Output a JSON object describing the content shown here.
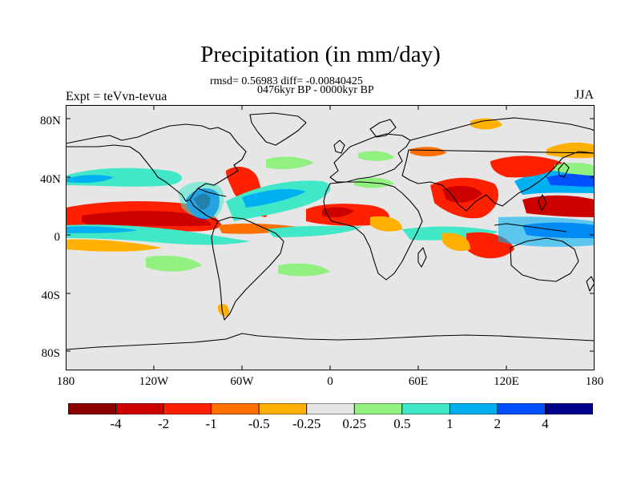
{
  "title": "Precipitation (in mm/day)",
  "stats_line1": "rmsd= 0.56983 diff= -0.00840425",
  "stats_line2": "0476kyr BP - 0000kyr BP",
  "experiment_label": "Expt = teVvn-tevua",
  "season_label": "JJA",
  "lat_ticks": [
    "80N",
    "40N",
    "0",
    "40S",
    "80S"
  ],
  "lon_ticks": [
    "180",
    "120W",
    "60W",
    "0",
    "60E",
    "120E",
    "180"
  ],
  "colorbar": {
    "colors": [
      "#8b0000",
      "#cd0000",
      "#ff2000",
      "#ff7000",
      "#ffb000",
      "#e6e6e6",
      "#90f080",
      "#40e8c8",
      "#00b0f0",
      "#0050ff",
      "#00008b"
    ],
    "labels": [
      "-4",
      "-2",
      "-1",
      "-0.5",
      "-0.25",
      "0.25",
      "0.5",
      "1",
      "2",
      "4"
    ]
  },
  "colors": {
    "background": "#e6e6e6",
    "coast": "#000000"
  }
}
